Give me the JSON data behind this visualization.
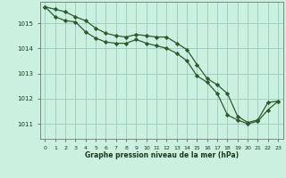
{
  "xlabel": "Graphe pression niveau de la mer (hPa)",
  "background_color": "#caf0e0",
  "grid_color": "#a0d0c0",
  "line_color": "#2d5a2d",
  "marker_color": "#2d5a2d",
  "xlim": [
    -0.5,
    23.5
  ],
  "ylim": [
    1010.4,
    1015.85
  ],
  "yticks": [
    1011,
    1012,
    1013,
    1014,
    1015
  ],
  "xticks": [
    0,
    1,
    2,
    3,
    4,
    5,
    6,
    7,
    8,
    9,
    10,
    11,
    12,
    13,
    14,
    15,
    16,
    17,
    18,
    19,
    20,
    21,
    22,
    23
  ],
  "series1": [
    1015.65,
    1015.55,
    1015.45,
    1015.25,
    1015.1,
    1014.8,
    1014.6,
    1014.5,
    1014.45,
    1014.55,
    1014.5,
    1014.45,
    1014.45,
    1014.2,
    1013.95,
    1013.35,
    1012.8,
    1012.55,
    1012.2,
    1011.3,
    1011.05,
    1011.15,
    1011.85,
    1011.9
  ],
  "series2": [
    1015.65,
    1015.25,
    1015.1,
    1015.05,
    1014.65,
    1014.4,
    1014.25,
    1014.2,
    1014.2,
    1014.35,
    1014.2,
    1014.1,
    1014.0,
    1013.8,
    1013.5,
    1012.9,
    1012.65,
    1012.2,
    1011.35,
    1011.15,
    1011.0,
    1011.1,
    1011.55,
    1011.9
  ]
}
